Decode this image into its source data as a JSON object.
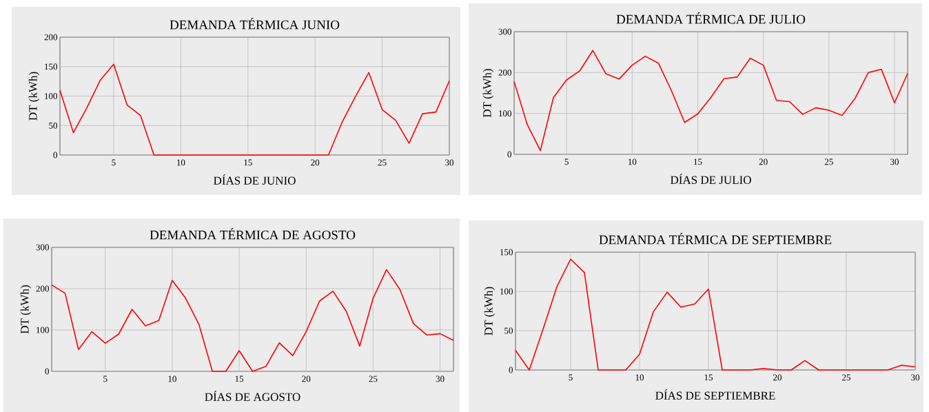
{
  "chart_data": [
    {
      "type": "line",
      "title": "DEMANDA TÉRMICA JUNIO",
      "xlabel": "DÍAS DE JUNIO",
      "ylabel": "DT (kWh)",
      "x": [
        1,
        2,
        3,
        4,
        5,
        6,
        7,
        8,
        9,
        10,
        11,
        12,
        13,
        14,
        15,
        16,
        17,
        18,
        19,
        20,
        21,
        22,
        23,
        24,
        25,
        26,
        27,
        28,
        29,
        30
      ],
      "series": [
        {
          "color": "#ff0000",
          "values": [
            110,
            38,
            80,
            127,
            154,
            85,
            67,
            0,
            0,
            0,
            0,
            0,
            0,
            0,
            0,
            0,
            0,
            0,
            0,
            0,
            0,
            55,
            99,
            140,
            77,
            59,
            20,
            70,
            73,
            126
          ]
        }
      ],
      "xlim": [
        1,
        30
      ],
      "ylim": [
        0,
        200
      ],
      "xticks": [
        5,
        10,
        15,
        20,
        25,
        30
      ],
      "yticks": [
        0,
        50,
        100,
        150,
        200
      ],
      "grid": true
    },
    {
      "type": "line",
      "title": "DEMANDA TÉRMICA DE JULIO",
      "xlabel": "DÍAS DE JULIO",
      "ylabel": "DT (kWh)",
      "x": [
        1,
        2,
        3,
        4,
        5,
        6,
        7,
        8,
        9,
        10,
        11,
        12,
        13,
        14,
        15,
        16,
        17,
        18,
        19,
        20,
        21,
        22,
        23,
        24,
        25,
        26,
        27,
        28,
        29,
        30,
        31
      ],
      "series": [
        {
          "color": "#ff0000",
          "values": [
            178,
            73,
            9,
            139,
            182,
            204,
            254,
            197,
            184,
            218,
            240,
            223,
            155,
            78,
            99,
            139,
            185,
            189,
            235,
            218,
            132,
            129,
            98,
            114,
            108,
            95,
            137,
            200,
            208,
            126,
            198
          ]
        }
      ],
      "xlim": [
        1,
        31
      ],
      "ylim": [
        0,
        300
      ],
      "xticks": [
        5,
        10,
        15,
        20,
        25,
        30
      ],
      "yticks": [
        0,
        100,
        200,
        300
      ],
      "grid": true
    },
    {
      "type": "line",
      "title": "DEMANDA TÉRMICA DE AGOSTO",
      "xlabel": "DÍAS DE AGOSTO",
      "ylabel": "DT (kWh)",
      "x": [
        1,
        2,
        3,
        4,
        5,
        6,
        7,
        8,
        9,
        10,
        11,
        12,
        13,
        14,
        15,
        16,
        17,
        18,
        19,
        20,
        21,
        22,
        23,
        24,
        25,
        26,
        27,
        28,
        29,
        30,
        31
      ],
      "series": [
        {
          "color": "#ff0000",
          "values": [
            209,
            189,
            53,
            96,
            68,
            90,
            150,
            110,
            123,
            220,
            177,
            113,
            0,
            0,
            50,
            0,
            12,
            69,
            38,
            96,
            170,
            194,
            145,
            61,
            177,
            246,
            198,
            116,
            88,
            91,
            75
          ]
        }
      ],
      "xlim": [
        1,
        31
      ],
      "ylim": [
        0,
        300
      ],
      "xticks": [
        5,
        10,
        15,
        20,
        25,
        30
      ],
      "yticks": [
        0,
        100,
        200,
        300
      ],
      "grid": true
    },
    {
      "type": "line",
      "title": "DEMANDA TÉRMICA DE SEPTIEMBRE",
      "xlabel": "DÍAS DE SEPTIEMBRE",
      "ylabel": "DT (kWh)",
      "x": [
        1,
        2,
        3,
        4,
        5,
        6,
        7,
        8,
        9,
        10,
        11,
        12,
        13,
        14,
        15,
        16,
        17,
        18,
        19,
        20,
        21,
        22,
        23,
        24,
        25,
        26,
        27,
        28,
        29,
        30
      ],
      "series": [
        {
          "color": "#ff0000",
          "values": [
            25,
            0,
            52,
            106,
            141,
            124,
            0,
            0,
            0,
            20,
            74,
            99,
            80,
            84,
            103,
            0,
            0,
            0,
            2,
            0,
            0,
            12,
            0,
            0,
            0,
            0,
            0,
            0,
            6,
            4
          ]
        }
      ],
      "xlim": [
        1,
        30
      ],
      "ylim": [
        0,
        150
      ],
      "xticks": [
        5,
        10,
        15,
        20,
        25,
        30
      ],
      "yticks": [
        0,
        50,
        100,
        150
      ],
      "grid": true
    }
  ]
}
